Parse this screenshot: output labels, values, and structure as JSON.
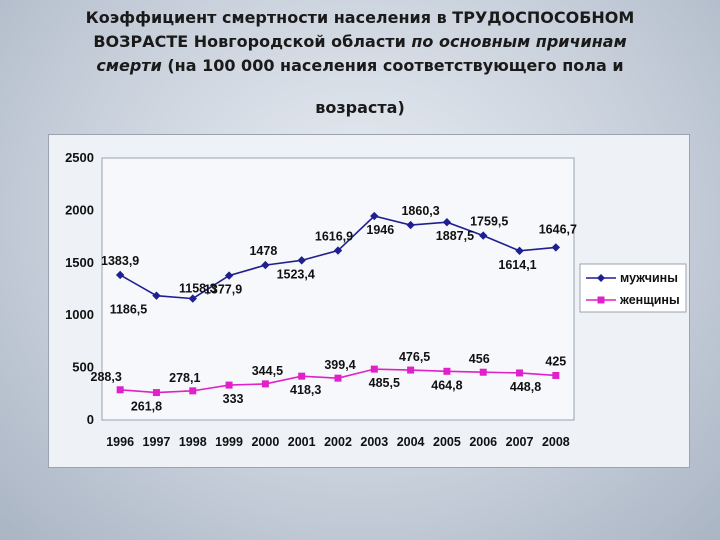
{
  "title": {
    "line1": "Коэффициент смертности населения в  ТРУДОСПОСОБНОМ",
    "line2a": "ВОЗРАСТЕ Новгородской области ",
    "line2b": "по основным  причинам",
    "line3a": "смерти",
    "line3b": " (на 100 000 населения соответствующего пола и",
    "line4": "возраста)"
  },
  "chart_data": {
    "type": "line",
    "x": [
      "1996",
      "1997",
      "1998",
      "1999",
      "2000",
      "2001",
      "2002",
      "2003",
      "2004",
      "2005",
      "2006",
      "2007",
      "2008"
    ],
    "ylim": [
      0,
      2500
    ],
    "yticks": [
      "0",
      "500",
      "1000",
      "1500",
      "2000",
      "2500"
    ],
    "grid": false,
    "legend_position": "right",
    "series": [
      {
        "name": "мужчины",
        "color": "#1f1f8f",
        "marker": "diamond",
        "values": [
          1383.9,
          1186.5,
          1158.3,
          1377.9,
          1478,
          1523.4,
          1616.9,
          1946,
          1860.3,
          1887.5,
          1759.5,
          1614.1,
          1646.7
        ],
        "labels": [
          "1383,9",
          "1186,5",
          "1158,3",
          "1377,9",
          "1478",
          "1523,4",
          "1616,9",
          "1946",
          "1860,3",
          "1887,5",
          "1759,5",
          "1614,1",
          "1646,7"
        ]
      },
      {
        "name": "женщины",
        "color": "#e020c8",
        "marker": "square",
        "values": [
          288.3,
          261.8,
          278.1,
          333,
          344.5,
          418.3,
          399.4,
          485.5,
          476.5,
          464.8,
          456,
          448.8,
          425
        ],
        "labels": [
          "288,3",
          "261,8",
          "278,1",
          "333",
          "344,5",
          "418,3",
          "399,4",
          "485,5",
          "476,5",
          "464,8",
          "456",
          "448,8",
          "425"
        ]
      }
    ]
  }
}
